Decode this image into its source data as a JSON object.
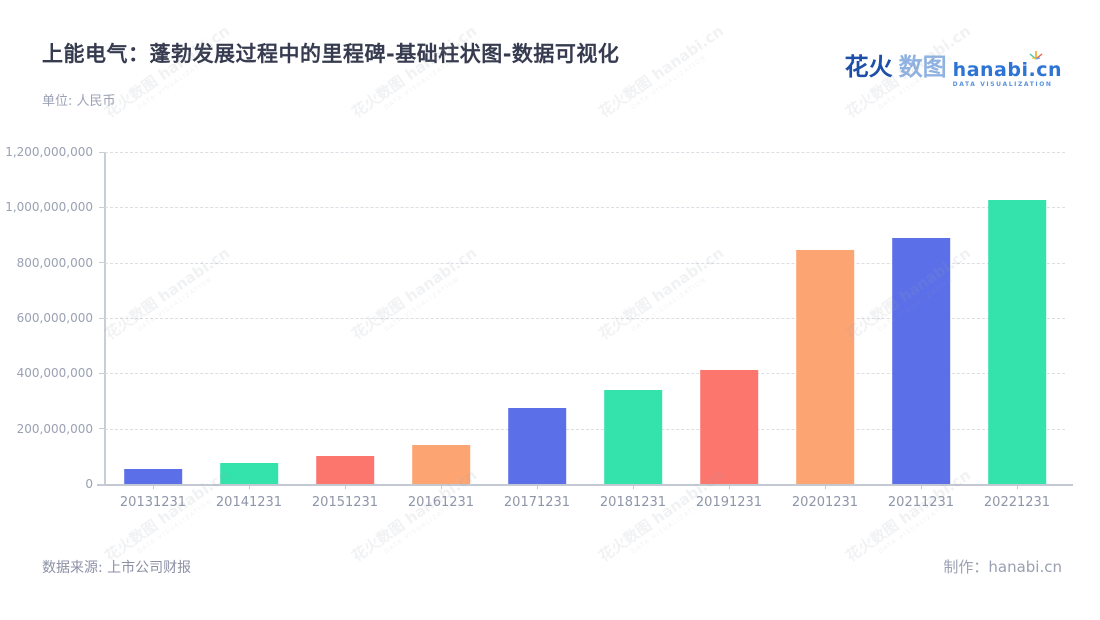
{
  "header": {
    "title": "上能电气：蓬勃发展过程中的里程碑-基础柱状图-数据可视化",
    "unit_label": "单位: 人民币"
  },
  "logo": {
    "brand_cn_primary": "花火",
    "brand_cn_secondary": "数图",
    "brand_domain": "hanabi.cn",
    "tagline": "DATA VISUALIZATION"
  },
  "footer": {
    "source": "数据来源: 上市公司财报",
    "credit_label": "制作：",
    "credit_value": "hanabi.cn"
  },
  "watermark": {
    "line1": "花火数图 hanabi.cn",
    "line2": "DATA VISUALIZATION",
    "columns": 4,
    "rows": 3
  },
  "chart_data": {
    "type": "bar",
    "title": "上能电气：蓬勃发展过程中的里程碑-基础柱状图-数据可视化",
    "unit": "人民币",
    "categories": [
      "20131231",
      "20141231",
      "20151231",
      "20161231",
      "20171231",
      "20181231",
      "20191231",
      "20201231",
      "20211231",
      "20221231"
    ],
    "values": [
      55000000,
      76000000,
      103000000,
      140000000,
      274000000,
      339000000,
      412000000,
      845000000,
      890000000,
      1028000000
    ],
    "xlabel": "",
    "ylabel": "",
    "ylim": [
      0,
      1200000000
    ],
    "ytick_interval": 200000000,
    "grid": "horizontal-dashed",
    "legend": "none",
    "bar_color_cycle": [
      "#5B70E8",
      "#33E3AB",
      "#FC766E",
      "#FDA473"
    ]
  },
  "colors": {
    "title_text": "#363b4f",
    "muted_text": "#9ba1b5",
    "axis_line": "#c4c8d2",
    "gridline": "#dcdee4",
    "brand_dark_blue": "#1d4fa8",
    "brand_light_blue": "#8fb2e2",
    "brand_domain_blue": "#2e74d4"
  }
}
